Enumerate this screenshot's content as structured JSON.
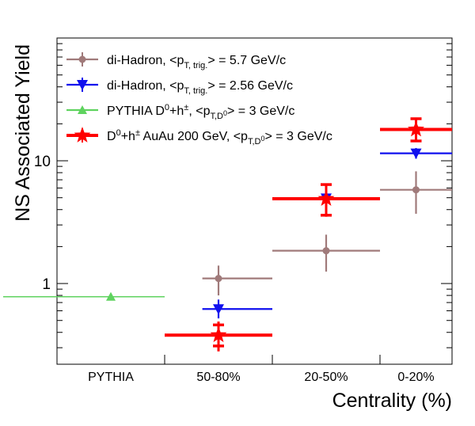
{
  "chart_data": {
    "type": "scatter",
    "title": "",
    "xlabel": "Centrality (%)",
    "ylabel": "NS Associated Yield",
    "yscale": "log",
    "ylim": [
      0.22,
      100
    ],
    "grid": false,
    "legend_position": "top-left",
    "categories": [
      "PYTHIA",
      "50-80%",
      "20-50%",
      "0-20%"
    ],
    "y_tick_labels": [
      {
        "value": 1,
        "label": "1"
      },
      {
        "value": 10,
        "label": "10"
      }
    ],
    "series": [
      {
        "name": "di-Hadron, <pT, trig.> = 5.7 GeV/c",
        "color": "#a07a7a",
        "marker": "circle",
        "points": [
          {
            "category": "50-80%",
            "x_range": [
              0.35,
              1.0
            ],
            "y": 1.1,
            "y_low": 0.8,
            "y_high": 1.4
          },
          {
            "category": "20-50%",
            "x_range": [
              0.0,
              1.0
            ],
            "y": 1.85,
            "y_low": 1.25,
            "y_high": 2.5
          },
          {
            "category": "0-20%",
            "x_range": [
              0.0,
              1.0
            ],
            "y": 5.8,
            "y_low": 3.7,
            "y_high": 8.2
          }
        ]
      },
      {
        "name": "di-Hadron, <pT, trig.> = 2.56 GeV/c",
        "color": "#1010ee",
        "marker": "triangle-down",
        "points": [
          {
            "category": "50-80%",
            "x_range": [
              0.35,
              1.0
            ],
            "y": 0.62,
            "y_low": 0.52,
            "y_high": 0.74
          },
          {
            "category": "20-50%",
            "x_range": [
              0.0,
              1.0
            ],
            "y": 4.95,
            "y_low": 4.1,
            "y_high": 5.8
          },
          {
            "category": "0-20%",
            "x_range": [
              0.0,
              1.0
            ],
            "y": 11.5,
            "y_low": 10.4,
            "y_high": 12.7
          }
        ]
      },
      {
        "name": "PYTHIA D0+h±, <pT,D0> = 3 GeV/c",
        "color": "#5fd35f",
        "marker": "triangle-up",
        "points": [
          {
            "category": "PYTHIA",
            "x_range": [
              -0.5,
              1.0
            ],
            "y": 0.78
          }
        ]
      },
      {
        "name": "D0+h± AuAu 200 GeV, <pT,D0> = 3 GeV/c",
        "color": "#ff0000",
        "marker": "star",
        "points": [
          {
            "category": "50-80%",
            "x_range": [
              0.0,
              1.0
            ],
            "y": 0.38,
            "y_low": 0.28,
            "y_high": 0.49,
            "sys_low": 0.31,
            "sys_high": 0.46
          },
          {
            "category": "20-50%",
            "x_range": [
              0.0,
              1.0
            ],
            "y": 4.9,
            "y_low": 3.5,
            "y_high": 6.5,
            "sys_low": 3.6,
            "sys_high": 6.4
          },
          {
            "category": "0-20%",
            "x_range": [
              0.0,
              1.0
            ],
            "y": 18.0,
            "y_low": 14.5,
            "y_high": 21.5,
            "sys_low": 14.5,
            "sys_high": 22.0
          }
        ]
      }
    ]
  },
  "legend": [
    {
      "pre": "di-Hadron, <p",
      "sub": "T, trig.",
      "post": "> =  5.7 GeV/c"
    },
    {
      "pre": "di-Hadron, <p",
      "sub": "T, trig.",
      "post": "> =  2.56 GeV/c"
    },
    {
      "pre": "PYTHIA D",
      "sup1": "0",
      "mid1": "+h",
      "sup2": "±",
      "mid2": ", <p",
      "sub": "T,D",
      "subsup": "0",
      "post": "> = 3 GeV/c"
    },
    {
      "pre": "D",
      "sup1": "0",
      "mid1": "+h",
      "sup2": "±",
      "mid2": " AuAu 200 GeV, <p",
      "sub": "T,D",
      "subsup": "0",
      "post": "> = 3 GeV/c"
    }
  ]
}
